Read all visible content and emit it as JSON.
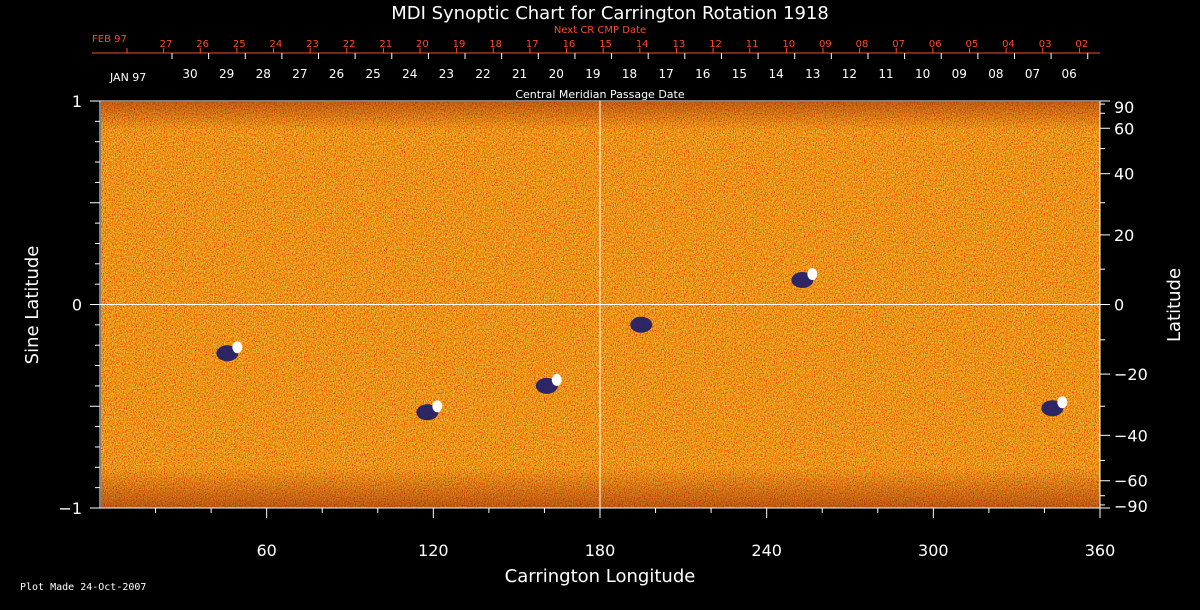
{
  "chart_data": {
    "type": "heatmap",
    "title": "MDI Synoptic Chart for Carrington Rotation 1918",
    "xlabel": "Carrington Longitude",
    "ylabel_left": "Sine Latitude",
    "ylabel_right": "Latitude",
    "xlim": [
      0,
      360
    ],
    "ylim": [
      -1,
      1
    ],
    "x_ticks": [
      60,
      120,
      180,
      240,
      300,
      360
    ],
    "y_ticks_left": [
      -1,
      0,
      1
    ],
    "y_ticks_right": [
      90,
      60,
      40,
      20,
      0,
      -20,
      -40,
      -60,
      -90
    ],
    "top_axis_label": "Central Meridian Passage Date",
    "cmp_month_label": "JAN 97",
    "cmp_dates": [
      "30",
      "29",
      "28",
      "27",
      "26",
      "25",
      "24",
      "23",
      "22",
      "21",
      "20",
      "19",
      "18",
      "17",
      "16",
      "15",
      "14",
      "13",
      "12",
      "11",
      "10",
      "09",
      "08",
      "07",
      "06"
    ],
    "next_cr_label": "Next CR CMP Date",
    "next_cr_month_label": "FEB 97",
    "next_cr_dates": [
      "27",
      "26",
      "25",
      "24",
      "23",
      "22",
      "21",
      "20",
      "19",
      "18",
      "17",
      "16",
      "15",
      "14",
      "13",
      "12",
      "11",
      "10",
      "09",
      "08",
      "07",
      "06",
      "05",
      "04",
      "03",
      "02"
    ],
    "footer": "Plot Made 24-Oct-2007",
    "active_regions": [
      {
        "lon": 48,
        "sinlat": -0.22,
        "polarity": "bipolar"
      },
      {
        "lon": 120,
        "sinlat": -0.51,
        "polarity": "bipolar"
      },
      {
        "lon": 163,
        "sinlat": -0.38,
        "polarity": "bipolar"
      },
      {
        "lon": 197,
        "sinlat": -0.08,
        "polarity": "negative"
      },
      {
        "lon": 255,
        "sinlat": 0.14,
        "polarity": "bipolar"
      },
      {
        "lon": 345,
        "sinlat": -0.49,
        "polarity": "bipolar"
      }
    ],
    "colors": {
      "background_field": "#e8641f",
      "positive": "#ffffff",
      "negative": "#1a1a6e",
      "guide_lines": "#ffffff",
      "next_cr": "#ff4a2a"
    }
  }
}
